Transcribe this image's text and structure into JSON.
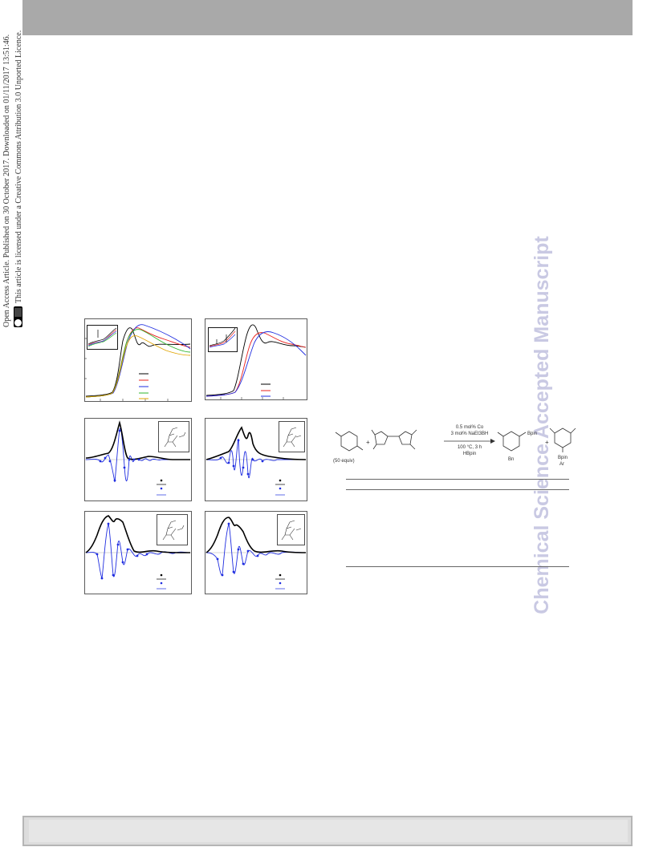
{
  "watermark": "Chemical Science Accepted Manuscript",
  "side_notice": {
    "line1": "Open Access Article. Published on 30 October 2017. Downloaded on 01/11/2017 13:51:46.",
    "line2": "This article is licensed under a Creative Commons Attribution 3.0 Unported Licence."
  },
  "scheme": {
    "reagent_label": "(50 equiv)",
    "cond1": "0.5 mol% Co",
    "cond2": "3 mol% NaEt3BH",
    "cond3": "100 °C, 3 h",
    "cond4": "HBpin",
    "product1_label": "Bpin",
    "product1_sub": "Bn",
    "product2_label": "Bpin",
    "product2_sub": "Ar"
  },
  "colors": {
    "header": "#a9a9a9",
    "watermark": "#c9c9e3",
    "series": [
      "#000000",
      "#e8201e",
      "#1f2de0",
      "#2fb52c",
      "#e0a400"
    ]
  }
}
